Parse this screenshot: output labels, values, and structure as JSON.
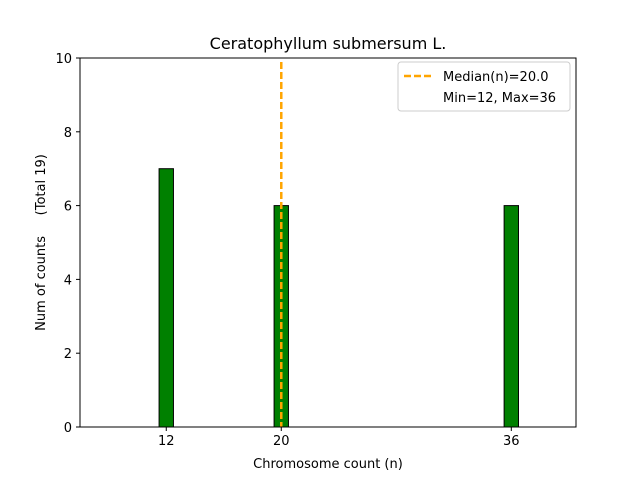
{
  "chart_data": {
    "type": "bar",
    "title": "Ceratophyllum submersum L.",
    "xlabel": "Chromosome count (n)",
    "ylabel": "Num of counts     (Total 19)",
    "x": [
      12,
      20,
      36
    ],
    "values": [
      7,
      6,
      6
    ],
    "xlim": [
      6,
      40.5
    ],
    "ylim": [
      0,
      10
    ],
    "xticks": [
      12,
      20,
      36
    ],
    "yticks": [
      0,
      2,
      4,
      6,
      8,
      10
    ],
    "bar_width": 1.0,
    "grid": false,
    "median": 20.0,
    "legend": {
      "placement": "top-right",
      "entries": [
        "Median(n)=20.0",
        "Min=12, Max=36"
      ]
    },
    "colors": {
      "bar_fill": "#008000",
      "bar_edge": "#000000",
      "median_line": "#FFA500",
      "axes": "#000000"
    }
  }
}
